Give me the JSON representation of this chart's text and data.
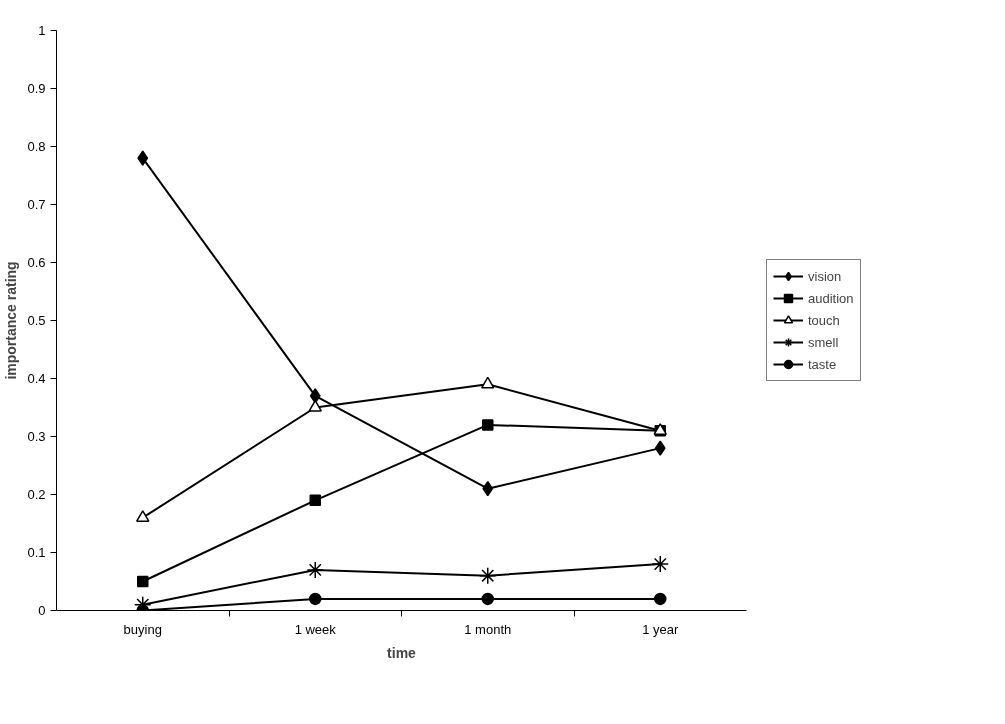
{
  "chart_data": {
    "type": "line",
    "xlabel": "time",
    "ylabel": "importance rating",
    "categories": [
      "buying",
      "1 week",
      "1 month",
      "1 year"
    ],
    "series": [
      {
        "name": "vision",
        "color": "#000000",
        "marker": "diamond",
        "values": [
          0.78,
          0.37,
          0.21,
          0.28
        ]
      },
      {
        "name": "audition",
        "color": "#000000",
        "marker": "square",
        "values": [
          0.05,
          0.19,
          0.32,
          0.31
        ]
      },
      {
        "name": "touch",
        "color": "#000000",
        "marker": "triangle",
        "values": [
          0.16,
          0.35,
          0.39,
          0.31
        ]
      },
      {
        "name": "smell",
        "color": "#000000",
        "marker": "cross",
        "values": [
          0.01,
          0.07,
          0.06,
          0.08
        ]
      },
      {
        "name": "taste",
        "color": "#000000",
        "marker": "circle",
        "values": [
          0,
          0.02,
          0.02,
          0.02
        ]
      }
    ],
    "ylim": [
      0,
      1
    ],
    "yticks": [
      0,
      0.1,
      0.2,
      0.3,
      0.4,
      0.5,
      0.6,
      0.7,
      0.8,
      0.9,
      1
    ],
    "grid": false,
    "legend": "right",
    "line_style": "solid"
  }
}
